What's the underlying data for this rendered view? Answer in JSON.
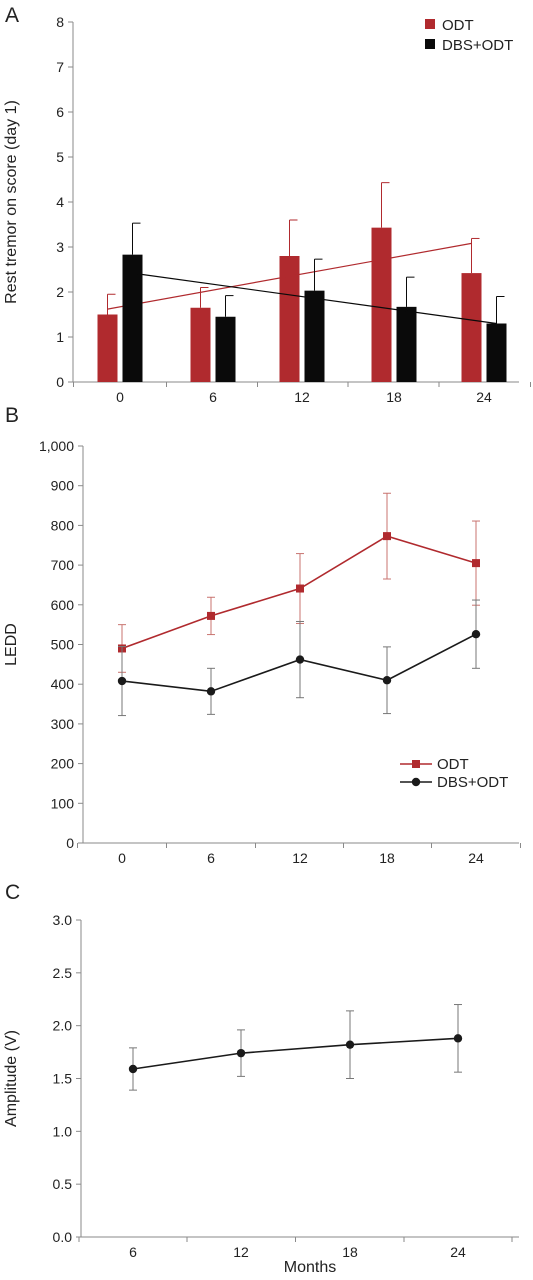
{
  "chart_data": [
    {
      "panel": "A",
      "type": "bar",
      "ylabel": "Rest tremor on score (day 1)",
      "xlabel": "",
      "categories": [
        "0",
        "6",
        "12",
        "18",
        "24"
      ],
      "ylim": [
        0,
        8
      ],
      "yticks": [
        "0",
        "1",
        "2",
        "3",
        "4",
        "5",
        "6",
        "7",
        "8"
      ],
      "legend_position": "top-right",
      "grid": false,
      "series": [
        {
          "name": "ODT",
          "color": "#b02a2e",
          "values": [
            1.5,
            1.65,
            2.8,
            3.43,
            2.42
          ],
          "errors": [
            0.45,
            0.45,
            0.8,
            1.0,
            0.77
          ],
          "trend": [
            1.62,
            3.08
          ]
        },
        {
          "name": "DBS+ODT",
          "color": "#0a0a0a",
          "values": [
            2.83,
            1.45,
            2.03,
            1.67,
            1.3
          ],
          "errors": [
            0.7,
            0.47,
            0.7,
            0.66,
            0.6
          ],
          "trend": [
            2.42,
            1.3
          ]
        }
      ]
    },
    {
      "panel": "B",
      "type": "line",
      "ylabel": "LEDD",
      "xlabel": "",
      "categories": [
        "0",
        "6",
        "12",
        "18",
        "24"
      ],
      "ylim": [
        0,
        1000
      ],
      "yticks": [
        "0",
        "100",
        "200",
        "300",
        "400",
        "500",
        "600",
        "700",
        "800",
        "900",
        "1,000"
      ],
      "legend_position": "bottom-right",
      "grid": false,
      "series": [
        {
          "name": "ODT",
          "color": "#b02a2e",
          "marker": "square",
          "values": [
            490,
            572,
            641,
            773,
            705
          ],
          "errors": [
            60,
            47,
            88,
            108,
            106
          ]
        },
        {
          "name": "DBS+ODT",
          "color": "#1a1a1a",
          "marker": "circle",
          "values": [
            408,
            382,
            462,
            410,
            526
          ],
          "errors": [
            87,
            58,
            96,
            84,
            86
          ]
        }
      ]
    },
    {
      "panel": "C",
      "type": "line",
      "ylabel": "Amplitude (V)",
      "xlabel": "Months",
      "categories": [
        "6",
        "12",
        "18",
        "24"
      ],
      "ylim": [
        0,
        3
      ],
      "yticks": [
        "0.0",
        "0.5",
        "1.0",
        "1.5",
        "2.0",
        "2.5",
        "3.0"
      ],
      "grid": false,
      "series": [
        {
          "name": "",
          "color": "#1a1a1a",
          "marker": "circle",
          "values": [
            1.59,
            1.74,
            1.82,
            1.88
          ],
          "errors": [
            0.2,
            0.22,
            0.32,
            0.32
          ]
        }
      ]
    }
  ]
}
